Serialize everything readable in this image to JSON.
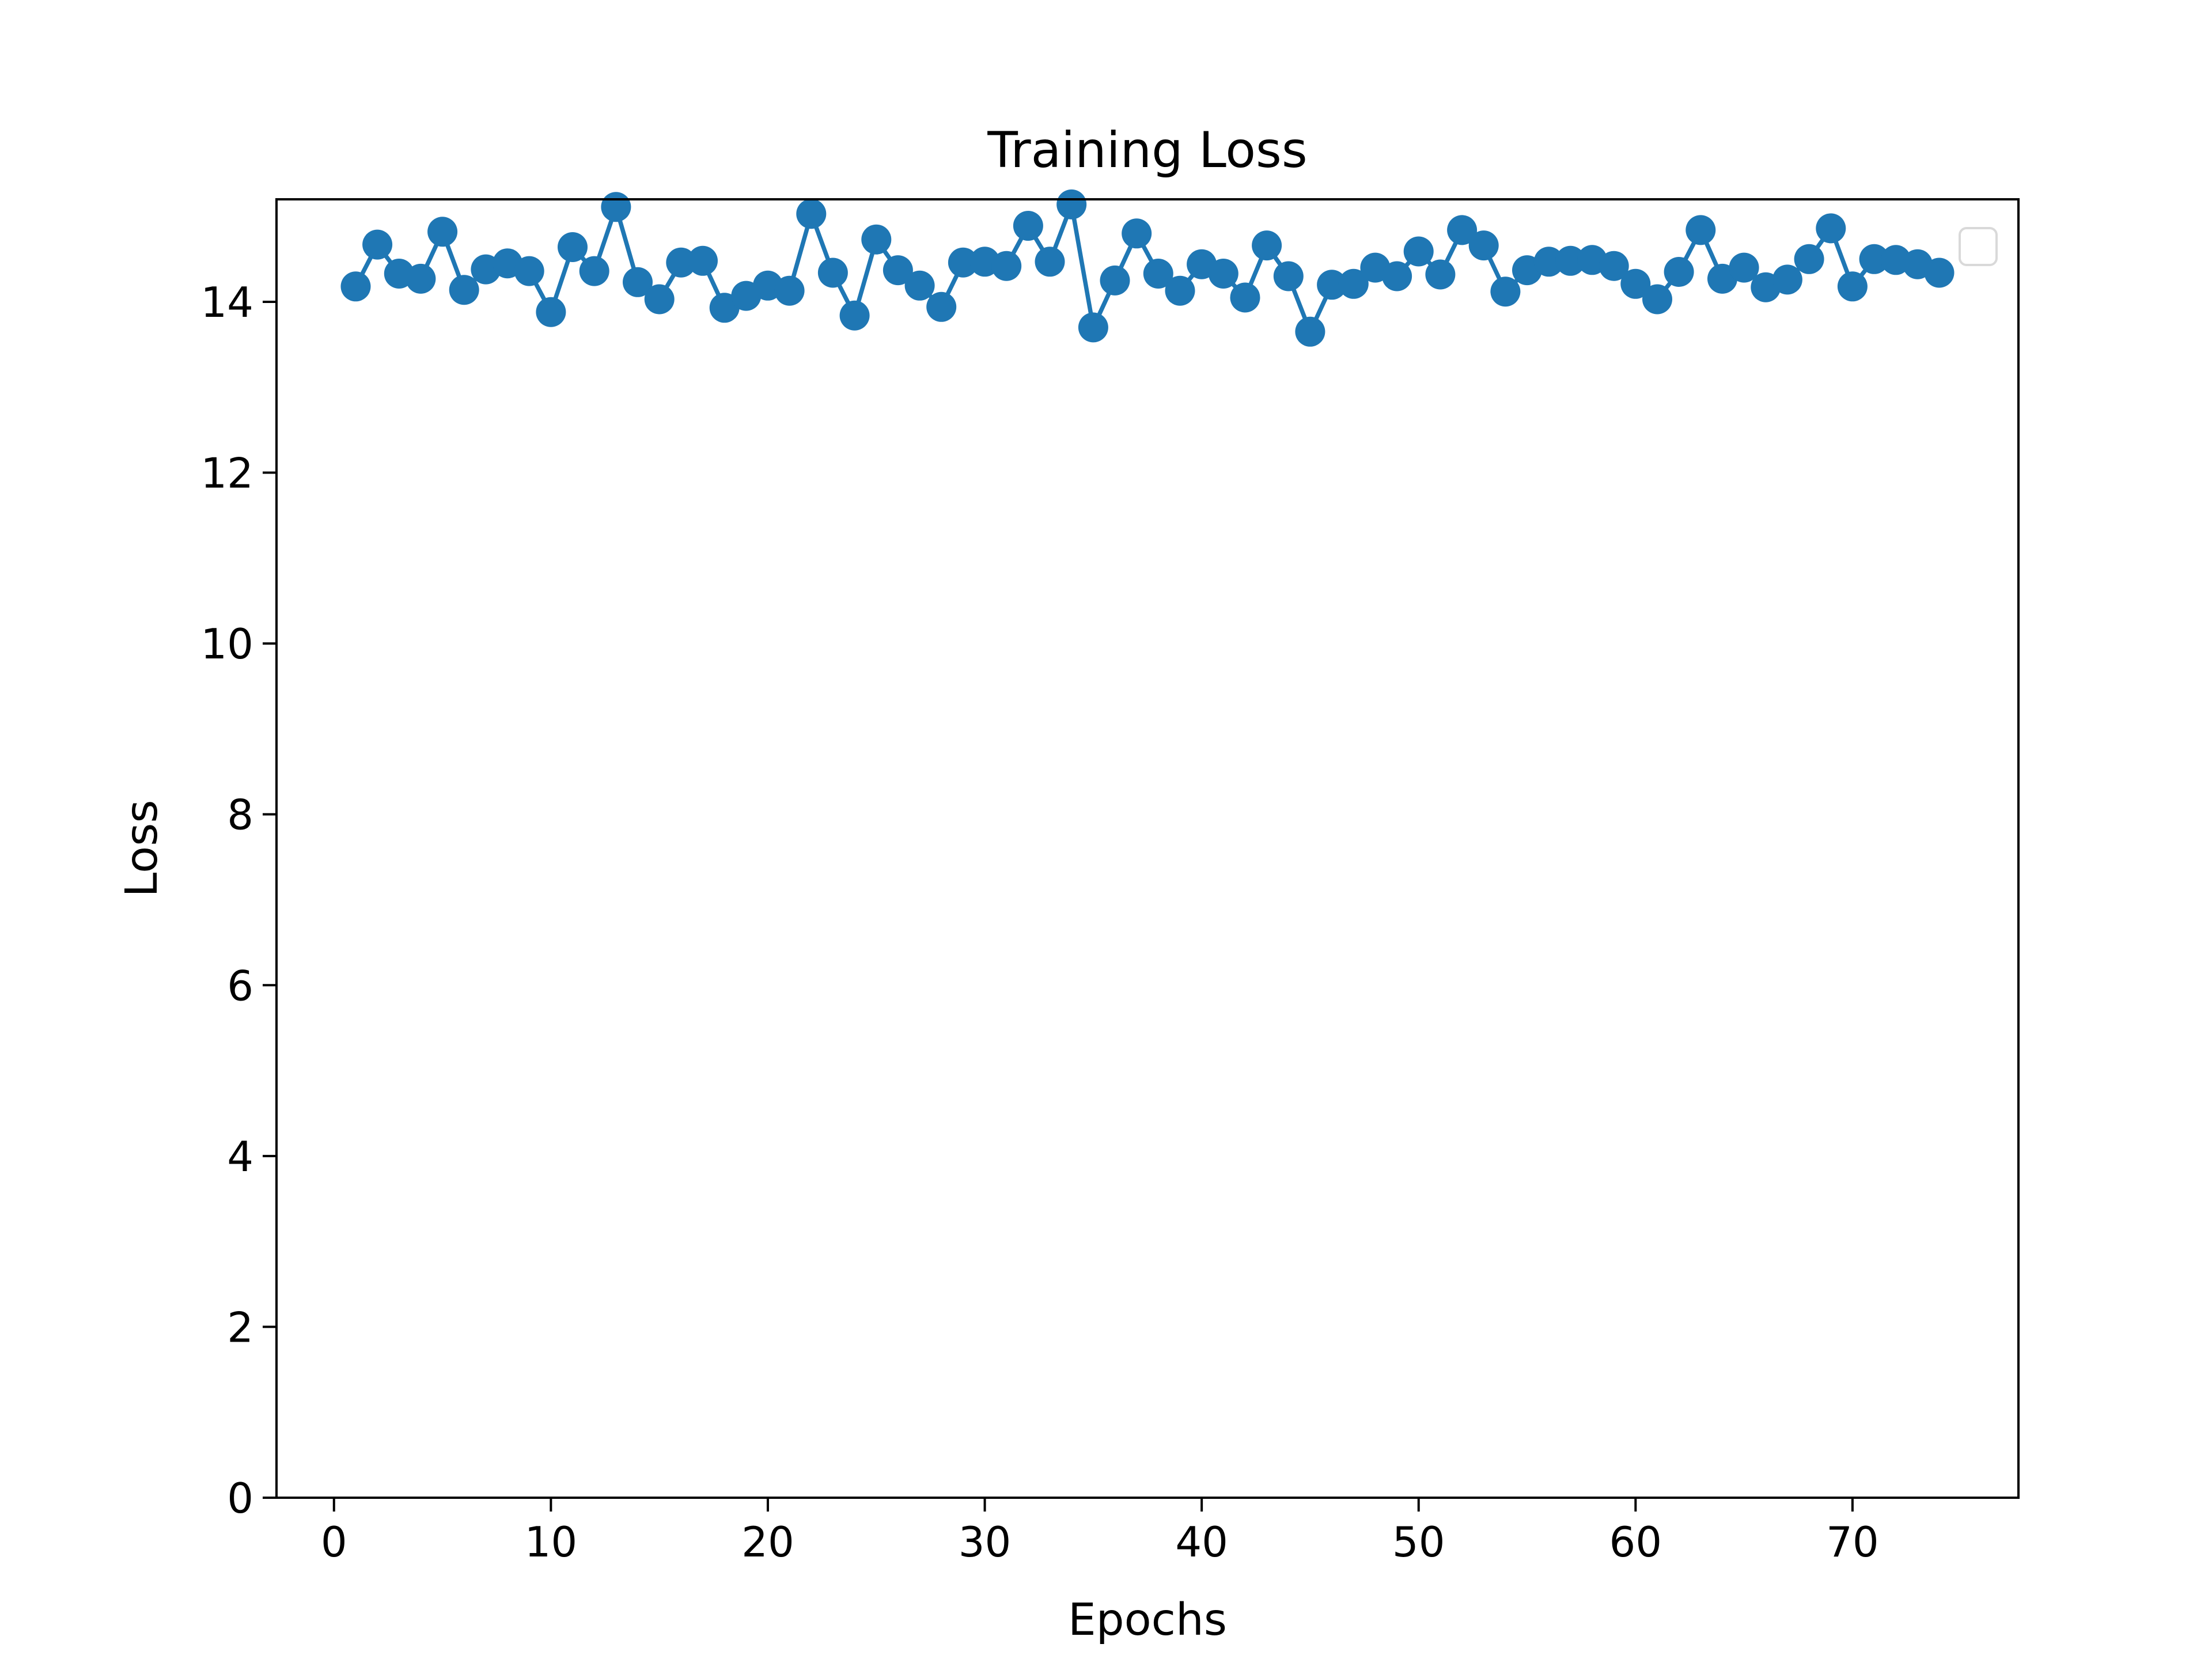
{
  "chart_data": {
    "type": "line",
    "title": "Training Loss",
    "xlabel": "Epochs",
    "ylabel": "Loss",
    "xlim": [
      -2.65,
      77.65
    ],
    "ylim": [
      0,
      15.2
    ],
    "xticks": [
      0,
      10,
      20,
      30,
      40,
      50,
      60,
      70
    ],
    "yticks": [
      0,
      2,
      4,
      6,
      8,
      10,
      12,
      14
    ],
    "x_tick_labels": [
      "0",
      "10",
      "20",
      "30",
      "40",
      "50",
      "60",
      "70"
    ],
    "y_tick_labels": [
      "0",
      "2",
      "4",
      "6",
      "8",
      "10",
      "12",
      "14"
    ],
    "grid": false,
    "legend": {
      "position": "upper right",
      "entries": []
    },
    "series": [
      {
        "color": "#1f77b4",
        "marker": "circle",
        "x": [
          1,
          2,
          3,
          4,
          5,
          6,
          7,
          8,
          9,
          10,
          11,
          12,
          13,
          14,
          15,
          16,
          17,
          18,
          19,
          20,
          21,
          22,
          23,
          24,
          25,
          26,
          27,
          28,
          29,
          30,
          31,
          32,
          33,
          34,
          35,
          36,
          37,
          38,
          39,
          40,
          41,
          42,
          43,
          44,
          45,
          46,
          47,
          48,
          49,
          50,
          51,
          52,
          53,
          54,
          55,
          56,
          57,
          58,
          59,
          60,
          61,
          62,
          63,
          64,
          65,
          66,
          67,
          68,
          69,
          70,
          71,
          72,
          73,
          74
        ],
        "y": [
          14.18,
          14.67,
          14.33,
          14.27,
          14.82,
          14.14,
          14.38,
          14.45,
          14.36,
          13.88,
          14.64,
          14.36,
          15.11,
          14.23,
          14.03,
          14.46,
          14.48,
          13.93,
          14.07,
          14.19,
          14.13,
          15.03,
          14.34,
          13.84,
          14.73,
          14.37,
          14.19,
          13.94,
          14.46,
          14.47,
          14.42,
          14.89,
          14.47,
          15.14,
          13.7,
          14.25,
          14.8,
          14.33,
          14.13,
          14.44,
          14.33,
          14.05,
          14.66,
          14.3,
          13.65,
          14.2,
          14.21,
          14.4,
          14.3,
          14.59,
          14.32,
          14.84,
          14.66,
          14.12,
          14.37,
          14.47,
          14.48,
          14.49,
          14.42,
          14.21,
          14.03,
          14.35,
          14.84,
          14.27,
          14.4,
          14.17,
          14.26,
          14.5,
          14.86,
          14.18,
          14.5,
          14.49,
          14.44,
          14.34
        ]
      }
    ]
  }
}
